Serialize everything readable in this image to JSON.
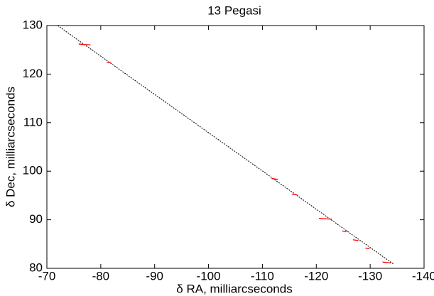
{
  "chart_data": {
    "type": "scatter",
    "title": "13 Pegasi",
    "xlabel": "δ RA, milliarcseconds",
    "ylabel": "δ Dec, milliarcseconds",
    "xlim": [
      -70,
      -140
    ],
    "ylim": [
      80,
      130
    ],
    "xticks": [
      -70,
      -80,
      -90,
      -100,
      -110,
      -120,
      -130,
      -140
    ],
    "yticks": [
      80,
      90,
      100,
      110,
      120,
      130
    ],
    "grid": false,
    "series": [
      {
        "color": "#ff0000",
        "x": [
          -77.0,
          -81.5,
          -112.3,
          -116.0,
          -121.7,
          -125.2,
          -127.3,
          -129.5,
          -133.1
        ],
        "values": [
          126.1,
          122.4,
          98.4,
          95.2,
          90.2,
          87.6,
          85.8,
          84.1,
          81.2
        ],
        "xerr": [
          1.1,
          0.4,
          0.6,
          0.5,
          1.2,
          0.4,
          0.5,
          0.4,
          0.8
        ]
      }
    ],
    "fit_line": {
      "color": "#000000",
      "x": [
        -72,
        -134.3
      ],
      "values": [
        130,
        80.9
      ]
    }
  }
}
